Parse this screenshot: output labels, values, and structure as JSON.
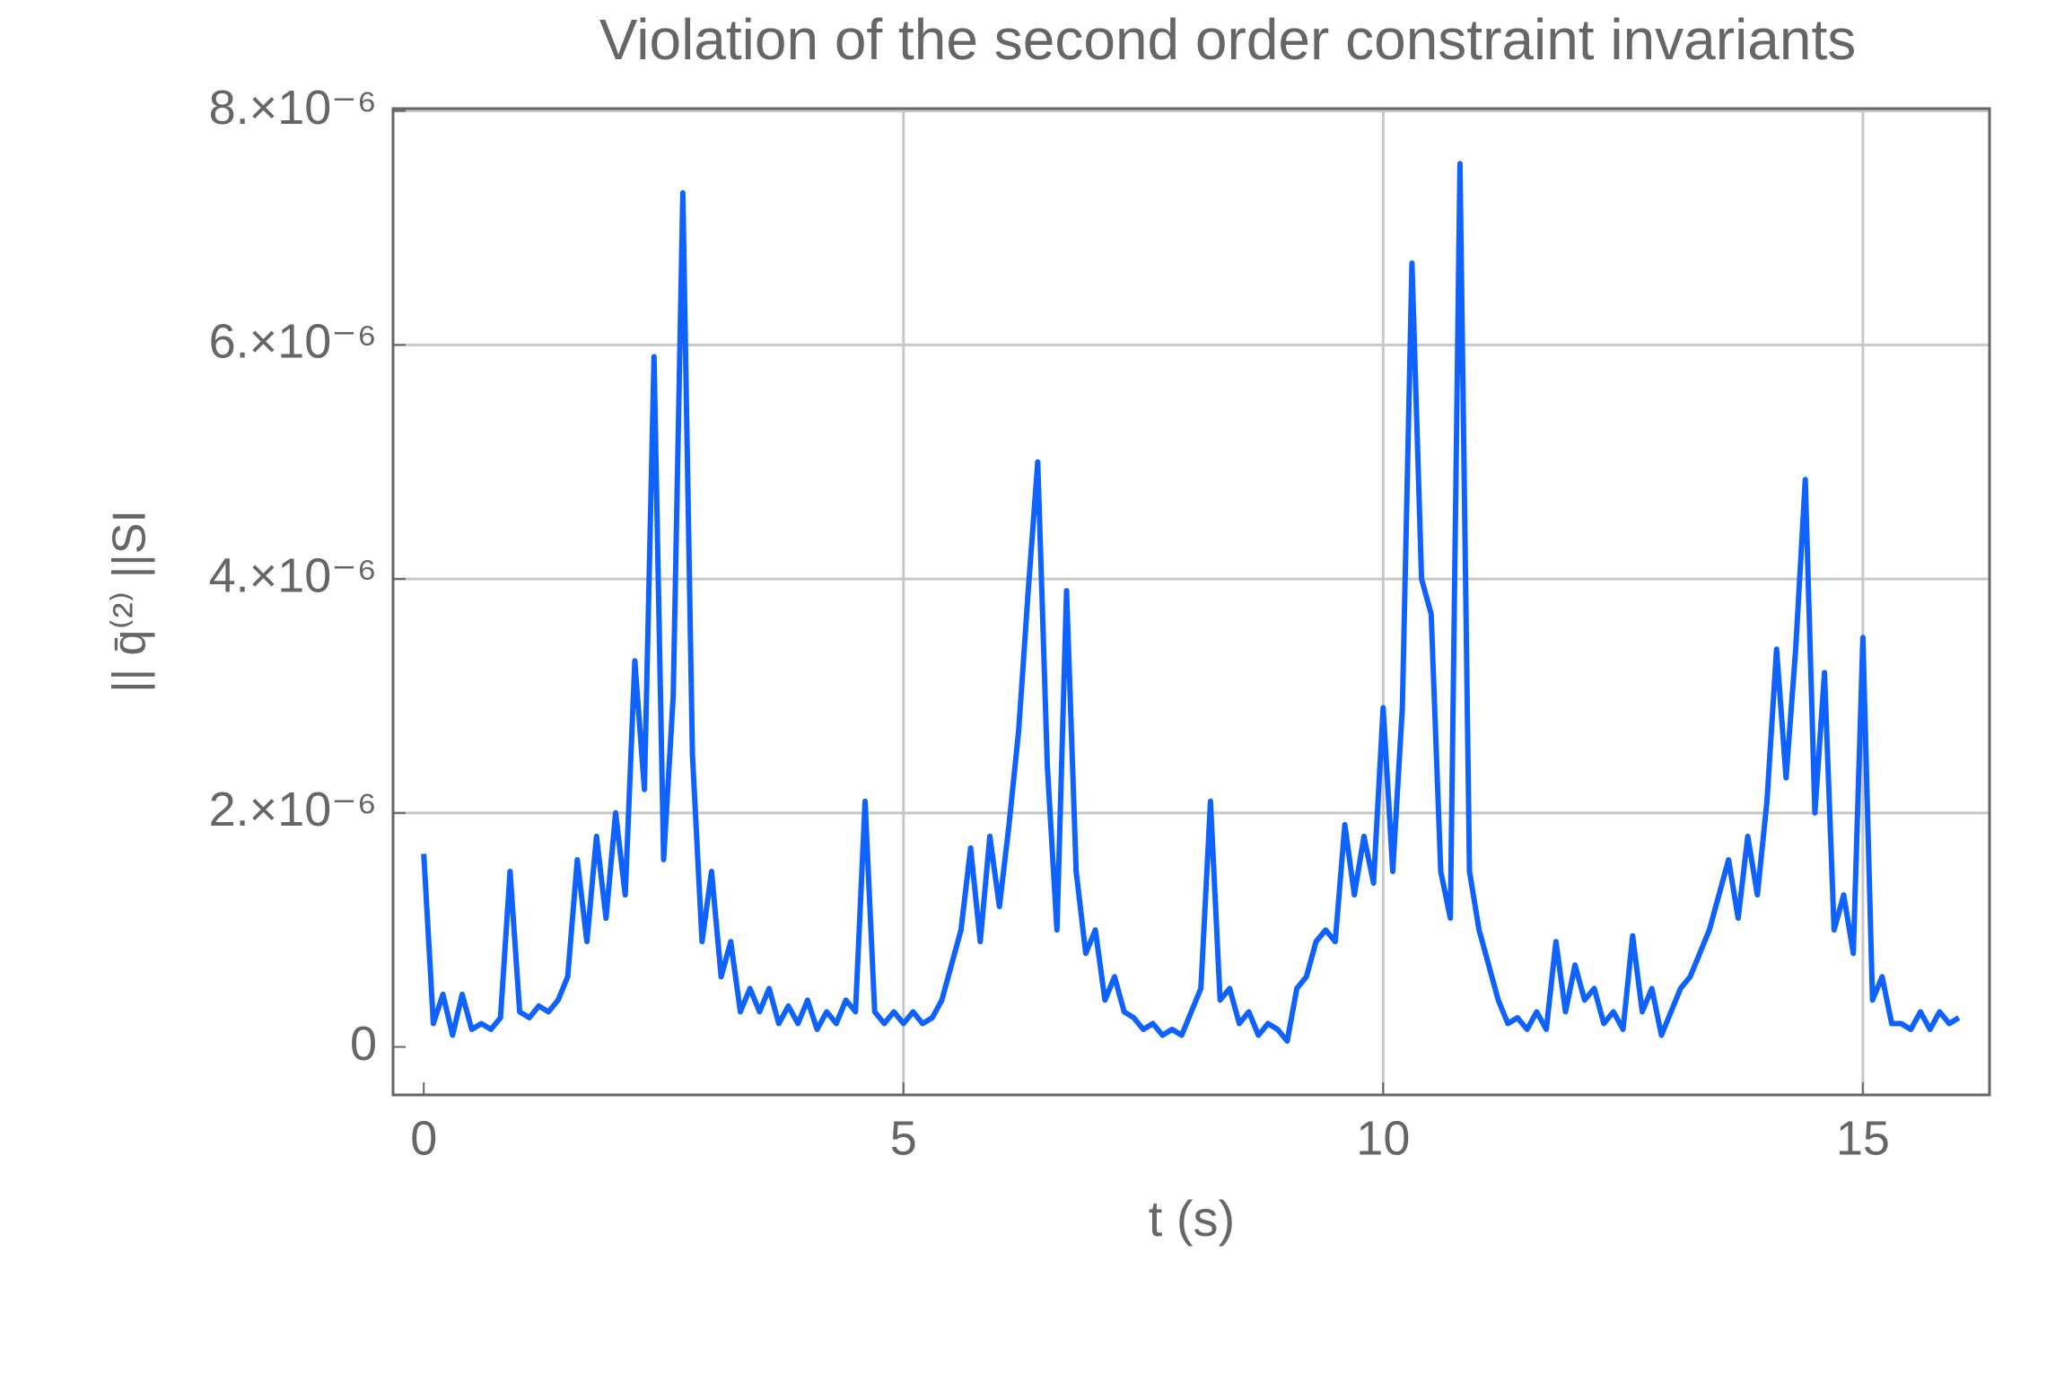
{
  "chart_data": {
    "type": "line",
    "title": "Violation of the second order constraint invariants",
    "x_label": "t (s)",
    "y_label": "|| q̄⁽²⁾ ||SI",
    "color": "#0f62fe",
    "grid": true,
    "xlim": [
      -0.32,
      16.32
    ],
    "ylim": [
      -4.1e-07,
      8.02e-06
    ],
    "xticks": [
      0,
      5,
      10,
      15
    ],
    "yticks": [
      0,
      {
        "value": 2e-06,
        "label": "2.×10⁻⁶"
      },
      {
        "value": 4e-06,
        "label": "4.×10⁻⁶"
      },
      {
        "value": 6e-06,
        "label": "6.×10⁻⁶"
      },
      {
        "value": 8e-06,
        "label": "8.×10⁻⁶"
      }
    ],
    "x": [
      0,
      0.1,
      0.2,
      0.3,
      0.4,
      0.5,
      0.6,
      0.7,
      0.8,
      0.9,
      1,
      1.1,
      1.2,
      1.3,
      1.4,
      1.5,
      1.6,
      1.7,
      1.8,
      1.9,
      2,
      2.1,
      2.2,
      2.3,
      2.4,
      2.5,
      2.6,
      2.7,
      2.8,
      2.9,
      3,
      3.1,
      3.2,
      3.3,
      3.4,
      3.5,
      3.6,
      3.7,
      3.8,
      3.9,
      4,
      4.1,
      4.2,
      4.3,
      4.4,
      4.5,
      4.6,
      4.7,
      4.8,
      4.9,
      5,
      5.1,
      5.2,
      5.3,
      5.4,
      5.5,
      5.6,
      5.7,
      5.8,
      5.9,
      6,
      6.1,
      6.2,
      6.3,
      6.4,
      6.5,
      6.6,
      6.7,
      6.8,
      6.9,
      7,
      7.1,
      7.2,
      7.3,
      7.4,
      7.5,
      7.6,
      7.7,
      7.8,
      7.9,
      8,
      8.1,
      8.2,
      8.3,
      8.4,
      8.5,
      8.6,
      8.7,
      8.8,
      8.9,
      9,
      9.1,
      9.2,
      9.3,
      9.4,
      9.5,
      9.6,
      9.7,
      9.8,
      9.9,
      10,
      10.1,
      10.2,
      10.3,
      10.4,
      10.5,
      10.6,
      10.7,
      10.8,
      10.9,
      11,
      11.1,
      11.2,
      11.3,
      11.4,
      11.5,
      11.6,
      11.7,
      11.8,
      11.9,
      12,
      12.1,
      12.2,
      12.3,
      12.4,
      12.5,
      12.6,
      12.7,
      12.8,
      12.9,
      13,
      13.1,
      13.2,
      13.3,
      13.4,
      13.5,
      13.6,
      13.7,
      13.8,
      13.9,
      14,
      14.1,
      14.2,
      14.3,
      14.4,
      14.5,
      14.6,
      14.7,
      14.8,
      14.9,
      15,
      15.1,
      15.2,
      15.3,
      15.4,
      15.5,
      15.6,
      15.7,
      15.8,
      15.9,
      16
    ],
    "values": [
      1.65e-06,
      2e-07,
      4.5e-07,
      1e-07,
      4.5e-07,
      1.5e-07,
      2e-07,
      1.5e-07,
      2.5e-07,
      1.5e-06,
      3e-07,
      2.5e-07,
      3.5e-07,
      3e-07,
      4e-07,
      6e-07,
      1.6e-06,
      9e-07,
      1.8e-06,
      1.1e-06,
      2e-06,
      1.3e-06,
      3.3e-06,
      2.2e-06,
      5.9e-06,
      1.6e-06,
      3e-06,
      7.3e-06,
      2.5e-06,
      9e-07,
      1.5e-06,
      6e-07,
      9e-07,
      3e-07,
      5e-07,
      3e-07,
      5e-07,
      2e-07,
      3.5e-07,
      2e-07,
      4e-07,
      1.5e-07,
      3e-07,
      2e-07,
      4e-07,
      3e-07,
      2.1e-06,
      3e-07,
      2e-07,
      3e-07,
      2e-07,
      3e-07,
      2e-07,
      2.5e-07,
      4e-07,
      7e-07,
      1e-06,
      1.7e-06,
      9e-07,
      1.8e-06,
      1.2e-06,
      1.9e-06,
      2.7e-06,
      3.9e-06,
      5e-06,
      2.4e-06,
      1e-06,
      3.9e-06,
      1.5e-06,
      8e-07,
      1e-06,
      4e-07,
      6e-07,
      3e-07,
      2.5e-07,
      1.5e-07,
      2e-07,
      1e-07,
      1.5e-07,
      1e-07,
      3e-07,
      5e-07,
      2.1e-06,
      4e-07,
      5e-07,
      2e-07,
      3e-07,
      1e-07,
      2e-07,
      1.5e-07,
      5e-08,
      5e-07,
      6e-07,
      9e-07,
      1e-06,
      9e-07,
      1.9e-06,
      1.3e-06,
      1.8e-06,
      1.4e-06,
      2.9e-06,
      1.5e-06,
      2.9e-06,
      6.7e-06,
      4e-06,
      3.7e-06,
      1.5e-06,
      1.1e-06,
      7.55e-06,
      1.5e-06,
      1e-06,
      7e-07,
      4e-07,
      2e-07,
      2.5e-07,
      1.5e-07,
      3e-07,
      1.5e-07,
      9e-07,
      3e-07,
      7e-07,
      4e-07,
      5e-07,
      2e-07,
      3e-07,
      1.5e-07,
      9.5e-07,
      3e-07,
      5e-07,
      1e-07,
      3e-07,
      5e-07,
      6e-07,
      8e-07,
      1e-06,
      1.3e-06,
      1.6e-06,
      1.1e-06,
      1.8e-06,
      1.3e-06,
      2.1e-06,
      3.4e-06,
      2.3e-06,
      3.4e-06,
      4.85e-06,
      2e-06,
      3.2e-06,
      1e-06,
      1.3e-06,
      8e-07,
      3.5e-06,
      4e-07,
      6e-07,
      2e-07,
      2e-07,
      1.5e-07,
      3e-07,
      1.5e-07,
      3e-07,
      2e-07,
      2.5e-07
    ]
  }
}
